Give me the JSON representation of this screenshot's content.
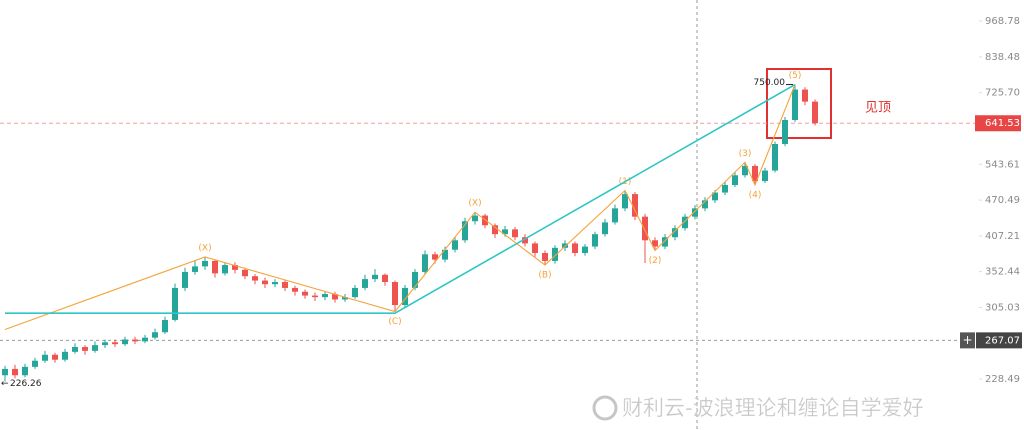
{
  "chart_data": {
    "type": "candlestick",
    "categories": [
      null,
      null,
      null,
      null,
      null,
      null,
      null,
      null,
      null,
      null,
      null,
      null,
      null,
      null,
      null,
      null,
      null,
      null,
      null,
      null,
      null,
      null,
      null,
      null,
      null,
      null,
      null,
      null,
      null,
      null,
      null,
      null,
      null,
      null,
      null,
      null,
      null,
      null,
      null,
      null,
      null,
      null,
      null,
      null,
      null,
      null,
      null,
      null,
      null,
      null,
      null,
      null,
      null,
      null,
      null,
      null,
      null,
      null,
      null,
      null,
      null,
      null,
      null,
      null,
      null,
      null,
      null,
      null,
      null,
      null,
      null,
      null,
      null,
      null,
      null,
      null,
      null,
      null,
      null,
      null,
      null,
      null
    ],
    "open": [
      232,
      238,
      232,
      240,
      246,
      252,
      247,
      255,
      260,
      256,
      262,
      265,
      263,
      268,
      266,
      270,
      276,
      290,
      330,
      352,
      360,
      368,
      350,
      362,
      355,
      346,
      340,
      335,
      338,
      330,
      325,
      320,
      318,
      322,
      315,
      318,
      330,
      342,
      348,
      338,
      308,
      330,
      352,
      378,
      370,
      385,
      400,
      432,
      442,
      425,
      410,
      418,
      405,
      395,
      380,
      368,
      388,
      395,
      380,
      390,
      410,
      430,
      455,
      482,
      440,
      400,
      390,
      405,
      420,
      440,
      455,
      470,
      485,
      500,
      520,
      540,
      508,
      530,
      590,
      650,
      735,
      700
    ],
    "high": [
      241,
      242,
      243,
      249,
      256,
      254,
      258,
      264,
      262,
      266,
      268,
      268,
      271,
      271,
      273,
      280,
      294,
      336,
      358,
      368,
      374,
      370,
      366,
      366,
      358,
      349,
      344,
      342,
      340,
      333,
      328,
      324,
      326,
      325,
      322,
      334,
      348,
      356,
      350,
      340,
      334,
      356,
      384,
      382,
      390,
      406,
      438,
      448,
      445,
      428,
      424,
      422,
      410,
      398,
      384,
      392,
      400,
      398,
      394,
      414,
      436,
      462,
      489,
      486,
      445,
      405,
      410,
      425,
      445,
      461,
      476,
      490,
      506,
      528,
      548,
      544,
      536,
      596,
      658,
      750,
      742,
      706
    ],
    "low": [
      226.26,
      229,
      230,
      238,
      244,
      244,
      245,
      253,
      252,
      254,
      259,
      260,
      261,
      263,
      264,
      268,
      274,
      288,
      326,
      348,
      355,
      344,
      347,
      350,
      342,
      335,
      330,
      331,
      326,
      320,
      316,
      313,
      314,
      311,
      312,
      316,
      327,
      338,
      333,
      300,
      304,
      327,
      349,
      364,
      366,
      381,
      396,
      426,
      420,
      404,
      406,
      400,
      390,
      374,
      362,
      364,
      383,
      375,
      376,
      386,
      406,
      426,
      450,
      434,
      365,
      384,
      386,
      400,
      416,
      435,
      450,
      465,
      480,
      496,
      515,
      500,
      504,
      526,
      585,
      645,
      690,
      636
    ],
    "close": [
      238,
      232,
      240,
      246,
      252,
      247,
      255,
      260,
      256,
      262,
      265,
      263,
      268,
      266,
      270,
      276,
      290,
      330,
      352,
      360,
      368,
      350,
      362,
      355,
      346,
      340,
      335,
      338,
      330,
      325,
      320,
      318,
      322,
      315,
      318,
      330,
      342,
      348,
      338,
      308,
      330,
      352,
      378,
      370,
      385,
      400,
      432,
      442,
      425,
      410,
      418,
      405,
      395,
      380,
      368,
      388,
      395,
      380,
      390,
      410,
      430,
      455,
      482,
      440,
      400,
      390,
      405,
      420,
      440,
      455,
      470,
      485,
      500,
      520,
      540,
      508,
      530,
      590,
      650,
      735,
      700,
      641.53
    ],
    "up_color": "#26a69a",
    "down_color": "#ef5350",
    "ylim": [
      186,
      1055
    ],
    "log_scale": true,
    "yticks": [
      968.78,
      838.48,
      {
        "value": 725.7,
        "label": "725.70"
      },
      543.61,
      470.49,
      407.21,
      352.44,
      305.03,
      228.49
    ],
    "max_marker": {
      "value": 750,
      "label": "750.00"
    },
    "crosshair": 267.07,
    "waves": [
      {
        "color": "#f5a33a",
        "points": [
          {
            "at": 0,
            "value": 279
          },
          {
            "at": 20,
            "value": 374,
            "label": "(X)"
          },
          {
            "at": 39,
            "value": 300,
            "label": "(C)"
          },
          {
            "at": 47,
            "value": 448,
            "label": "(X)"
          },
          {
            "at": 54,
            "value": 362,
            "label": "(B)"
          },
          {
            "at": 62,
            "value": 489,
            "label": "(1)"
          },
          {
            "at": 65,
            "value": 384,
            "label": "(2)"
          },
          {
            "at": 74,
            "value": 548,
            "label": "(3)"
          },
          {
            "at": 75,
            "value": 500,
            "label": "(4)"
          },
          {
            "at": 79,
            "value": 750,
            "label": "(5)"
          }
        ]
      },
      {
        "color": "#2ec6c6",
        "points": [
          {
            "at": 0,
            "value": 298
          },
          {
            "at": 39,
            "value": 298
          },
          {
            "at": 79,
            "value": 750
          }
        ]
      }
    ],
    "annotation": "见顶",
    "watermark": "财利云-波浪理论和缠论自学爱好"
  }
}
